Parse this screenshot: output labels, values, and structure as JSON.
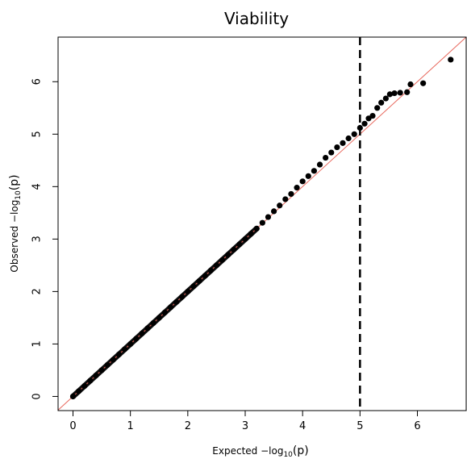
{
  "chart_data": {
    "type": "scatter",
    "title": "Viability",
    "xlabel": {
      "prefix": "Expected  −log",
      "sub": "10",
      "suffix": "(p)"
    },
    "ylabel": {
      "prefix": "Observed  −log",
      "sub": "10",
      "suffix": "(p)"
    },
    "xlim": [
      -0.26,
      6.85
    ],
    "ylim": [
      -0.27,
      6.85
    ],
    "x_ticks": [
      0,
      1,
      2,
      3,
      4,
      5,
      6
    ],
    "y_ticks": [
      0,
      1,
      2,
      3,
      4,
      5,
      6
    ],
    "reference_line": {
      "slope": 1,
      "intercept": 0,
      "color": "#e8675c"
    },
    "threshold_line": {
      "x": 5,
      "style": "dashed",
      "color": "#000000"
    },
    "point_color": "#000000",
    "grid": false,
    "series": [
      {
        "points": [
          [
            0.0,
            0.0
          ],
          [
            0.1,
            0.1
          ],
          [
            0.2,
            0.2
          ],
          [
            0.3,
            0.3
          ],
          [
            0.4,
            0.4
          ],
          [
            0.5,
            0.5
          ],
          [
            0.6,
            0.6
          ],
          [
            0.7,
            0.7
          ],
          [
            0.8,
            0.8
          ],
          [
            0.9,
            0.9
          ],
          [
            1.0,
            1.0
          ],
          [
            1.1,
            1.1
          ],
          [
            1.2,
            1.2
          ],
          [
            1.3,
            1.3
          ],
          [
            1.4,
            1.4
          ],
          [
            1.5,
            1.5
          ],
          [
            1.6,
            1.6
          ],
          [
            1.7,
            1.7
          ],
          [
            1.8,
            1.8
          ],
          [
            1.9,
            1.9
          ],
          [
            2.0,
            2.0
          ],
          [
            2.1,
            2.1
          ],
          [
            2.2,
            2.2
          ],
          [
            2.3,
            2.3
          ],
          [
            2.4,
            2.4
          ],
          [
            2.5,
            2.5
          ],
          [
            2.6,
            2.6
          ],
          [
            2.7,
            2.7
          ],
          [
            2.8,
            2.8
          ],
          [
            2.9,
            2.9
          ],
          [
            3.0,
            3.0
          ],
          [
            3.1,
            3.1
          ],
          [
            3.2,
            3.2
          ],
          [
            3.3,
            3.31
          ],
          [
            3.4,
            3.42
          ],
          [
            3.5,
            3.53
          ],
          [
            3.6,
            3.64
          ],
          [
            3.7,
            3.76
          ],
          [
            3.8,
            3.86
          ],
          [
            3.9,
            3.98
          ],
          [
            4.0,
            4.1
          ],
          [
            4.1,
            4.2
          ],
          [
            4.2,
            4.3
          ],
          [
            4.3,
            4.42
          ],
          [
            4.4,
            4.55
          ],
          [
            4.5,
            4.65
          ],
          [
            4.6,
            4.75
          ],
          [
            4.7,
            4.83
          ],
          [
            4.8,
            4.92
          ],
          [
            4.9,
            5.0
          ],
          [
            5.0,
            5.12
          ],
          [
            5.08,
            5.2
          ],
          [
            5.15,
            5.3
          ],
          [
            5.22,
            5.35
          ],
          [
            5.3,
            5.5
          ],
          [
            5.37,
            5.6
          ],
          [
            5.45,
            5.68
          ],
          [
            5.52,
            5.76
          ],
          [
            5.6,
            5.78
          ],
          [
            5.7,
            5.79
          ],
          [
            5.82,
            5.8
          ],
          [
            5.88,
            5.95
          ],
          [
            6.1,
            5.97
          ],
          [
            6.58,
            6.42
          ]
        ]
      }
    ]
  }
}
